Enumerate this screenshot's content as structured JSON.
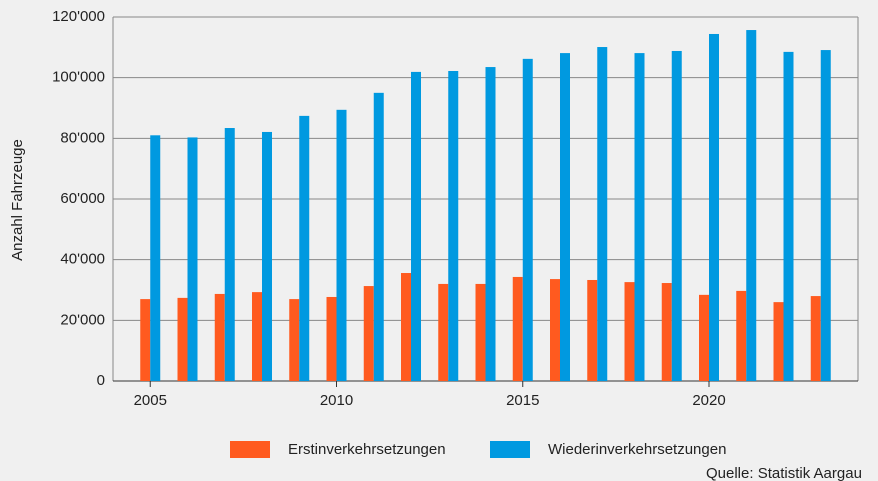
{
  "chart_data": {
    "type": "bar",
    "y_label": "Anzahl Fahrzeuge",
    "source": "Quelle: Statistik Aargau",
    "x": [
      2005,
      2006,
      2007,
      2008,
      2009,
      2010,
      2011,
      2012,
      2013,
      2014,
      2015,
      2016,
      2017,
      2018,
      2019,
      2020,
      2021,
      2022,
      2023
    ],
    "xlim": [
      2004,
      2024
    ],
    "xticks": [
      2005,
      2010,
      2015,
      2020
    ],
    "ylim": [
      0,
      120000
    ],
    "yticks": [
      0,
      {
        "value": 20000,
        "label": "20'000"
      },
      {
        "value": 40000,
        "label": "40'000"
      },
      {
        "value": 60000,
        "label": "60'000"
      },
      {
        "value": 80000,
        "label": "80'000"
      },
      {
        "value": 100000,
        "label": "100'000"
      },
      {
        "value": 120000,
        "label": "120'000"
      }
    ],
    "grid": true,
    "legend": "bottom",
    "series": [
      {
        "name": "Erstinverkehrsetzungen",
        "color": "#ff5a1f",
        "values": [
          27000,
          27400,
          28700,
          29300,
          27000,
          27700,
          31300,
          35600,
          32000,
          32000,
          34300,
          33600,
          33300,
          32600,
          32300,
          28400,
          29700,
          26000,
          28000
        ]
      },
      {
        "name": "Wiederinverkehrsetzungen",
        "color": "#0099e0",
        "values": [
          81000,
          80300,
          83400,
          82100,
          87400,
          89400,
          95000,
          101900,
          102200,
          103500,
          106200,
          108100,
          110100,
          108100,
          108800,
          114400,
          115700,
          108500,
          109100
        ]
      }
    ]
  }
}
